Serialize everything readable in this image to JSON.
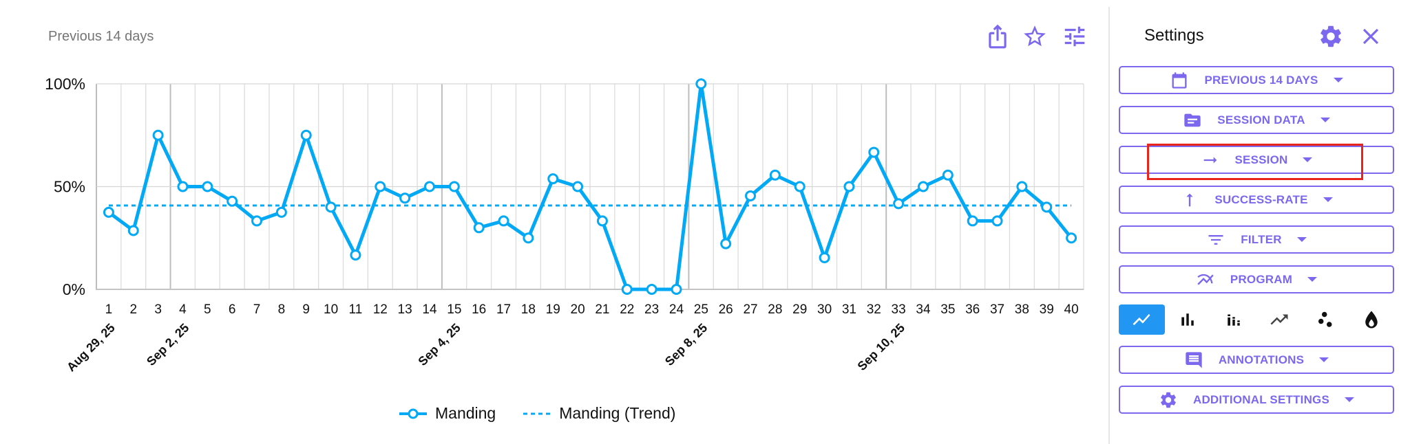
{
  "header": {
    "subtitle": "Previous 14 days",
    "icons": [
      "share-icon",
      "star-icon",
      "tune-icon"
    ]
  },
  "panel": {
    "title": "Settings",
    "header_icons": [
      "gear-icon",
      "close-icon"
    ],
    "buttons": [
      {
        "label": "PREVIOUS 14 DAYS",
        "icon": "calendar-icon"
      },
      {
        "label": "SESSION DATA",
        "icon": "folder-icon"
      },
      {
        "label": "SESSION",
        "icon": "arrow-right-icon"
      },
      {
        "label": "SUCCESS-RATE",
        "icon": "arrow-up-icon"
      },
      {
        "label": "FILTER",
        "icon": "filter-icon"
      },
      {
        "label": "PROGRAM",
        "icon": "program-icon"
      },
      {
        "label": "ANNOTATIONS",
        "icon": "comment-icon"
      },
      {
        "label": "ADDITIONAL SETTINGS",
        "icon": "gear-icon"
      }
    ],
    "chart_types": [
      {
        "name": "line",
        "active": true
      },
      {
        "name": "bar",
        "active": false
      },
      {
        "name": "stacked-bar",
        "active": false
      },
      {
        "name": "trend",
        "active": false
      },
      {
        "name": "scatter",
        "active": false
      },
      {
        "name": "heatmap",
        "active": false
      }
    ],
    "highlighted_button": "SESSION"
  },
  "colors": {
    "accent": "#7b68ee",
    "series": "#03a9f4",
    "active_toggle": "#2196f3",
    "highlight": "#e8251a",
    "grid": "#d6d6d6"
  },
  "chart_data": {
    "type": "line",
    "title": "Previous 14 days",
    "xlabel": "",
    "ylabel": "",
    "ylim": [
      0,
      100
    ],
    "y_ticks": [
      "0%",
      "50%",
      "100%"
    ],
    "x": [
      1,
      2,
      3,
      4,
      5,
      6,
      7,
      8,
      9,
      10,
      11,
      12,
      13,
      14,
      15,
      16,
      17,
      18,
      19,
      20,
      21,
      22,
      23,
      24,
      25,
      26,
      27,
      28,
      29,
      30,
      31,
      32,
      33,
      34,
      35,
      36,
      37,
      38,
      39,
      40
    ],
    "date_labels": [
      {
        "label": "Aug 29, 25",
        "at_index": 1
      },
      {
        "label": "Sep 2, 25",
        "at_index": 4
      },
      {
        "label": "Sep 4, 25",
        "at_index": 15
      },
      {
        "label": "Sep 8, 25",
        "at_index": 25
      },
      {
        "label": "Sep 10, 25",
        "at_index": 33
      }
    ],
    "series": [
      {
        "name": "Manding",
        "style": "solid-with-open-circles",
        "values": [
          37.5,
          28.6,
          75,
          50,
          50,
          42.9,
          33.3,
          37.5,
          75,
          40,
          16.7,
          50,
          44.4,
          50,
          50,
          30,
          33.3,
          25,
          53.8,
          50,
          33.3,
          0,
          0,
          0,
          100,
          22.2,
          45.5,
          55.6,
          50,
          15.4,
          50,
          66.7,
          41.7,
          50,
          55.6,
          33.3,
          33.3,
          50,
          40,
          25
        ]
      },
      {
        "name": "Manding (Trend)",
        "style": "dashed",
        "values": [
          40.8
        ]
      }
    ],
    "grid": true,
    "legend_position": "bottom"
  },
  "legend": {
    "items": [
      "Manding",
      "Manding (Trend)"
    ]
  }
}
